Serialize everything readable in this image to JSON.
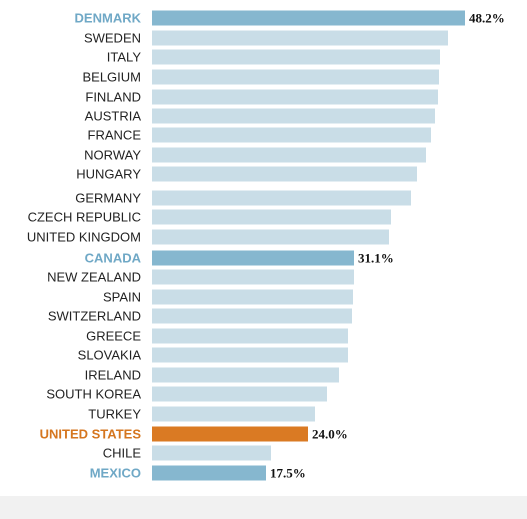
{
  "colors": {
    "default_bar": "#c9dde7",
    "highlight_bar": "#86b7cf",
    "highlight_label": "#6fa8c6",
    "us_bar": "#da7a23",
    "us_label": "#d5761f",
    "text": "#222222"
  },
  "chart_data": {
    "type": "bar",
    "orientation": "horizontal",
    "title": "",
    "xlabel": "",
    "ylabel": "",
    "xlim": [
      0,
      50
    ],
    "grid": false,
    "legend": "none",
    "categories": [
      "DENMARK",
      "SWEDEN",
      "ITALY",
      "BELGIUM",
      "FINLAND",
      "AUSTRIA",
      "FRANCE",
      "NORWAY",
      "HUNGARY",
      "GERMANY",
      "CZECH REPUBLIC",
      "UNITED KINGDOM",
      "CANADA",
      "NEW ZEALAND",
      "SPAIN",
      "SWITZERLAND",
      "GREECE",
      "SLOVAKIA",
      "IRELAND",
      "SOUTH KOREA",
      "TURKEY",
      "UNITED STATES",
      "CHILE",
      "MEXICO"
    ],
    "values": [
      48.2,
      45.5,
      44.3,
      44.1,
      44.0,
      43.6,
      42.9,
      42.2,
      40.7,
      39.8,
      36.7,
      36.4,
      31.1,
      31.0,
      30.9,
      30.7,
      30.2,
      30.1,
      28.8,
      26.9,
      25.1,
      24.0,
      18.3,
      17.5
    ],
    "highlight": [
      "DENMARK",
      "CANADA",
      "MEXICO"
    ],
    "accent": [
      "UNITED STATES"
    ],
    "value_labels": {
      "DENMARK": "48.2%",
      "CANADA": "31.1%",
      "UNITED STATES": "24.0%",
      "MEXICO": "17.5%"
    }
  }
}
